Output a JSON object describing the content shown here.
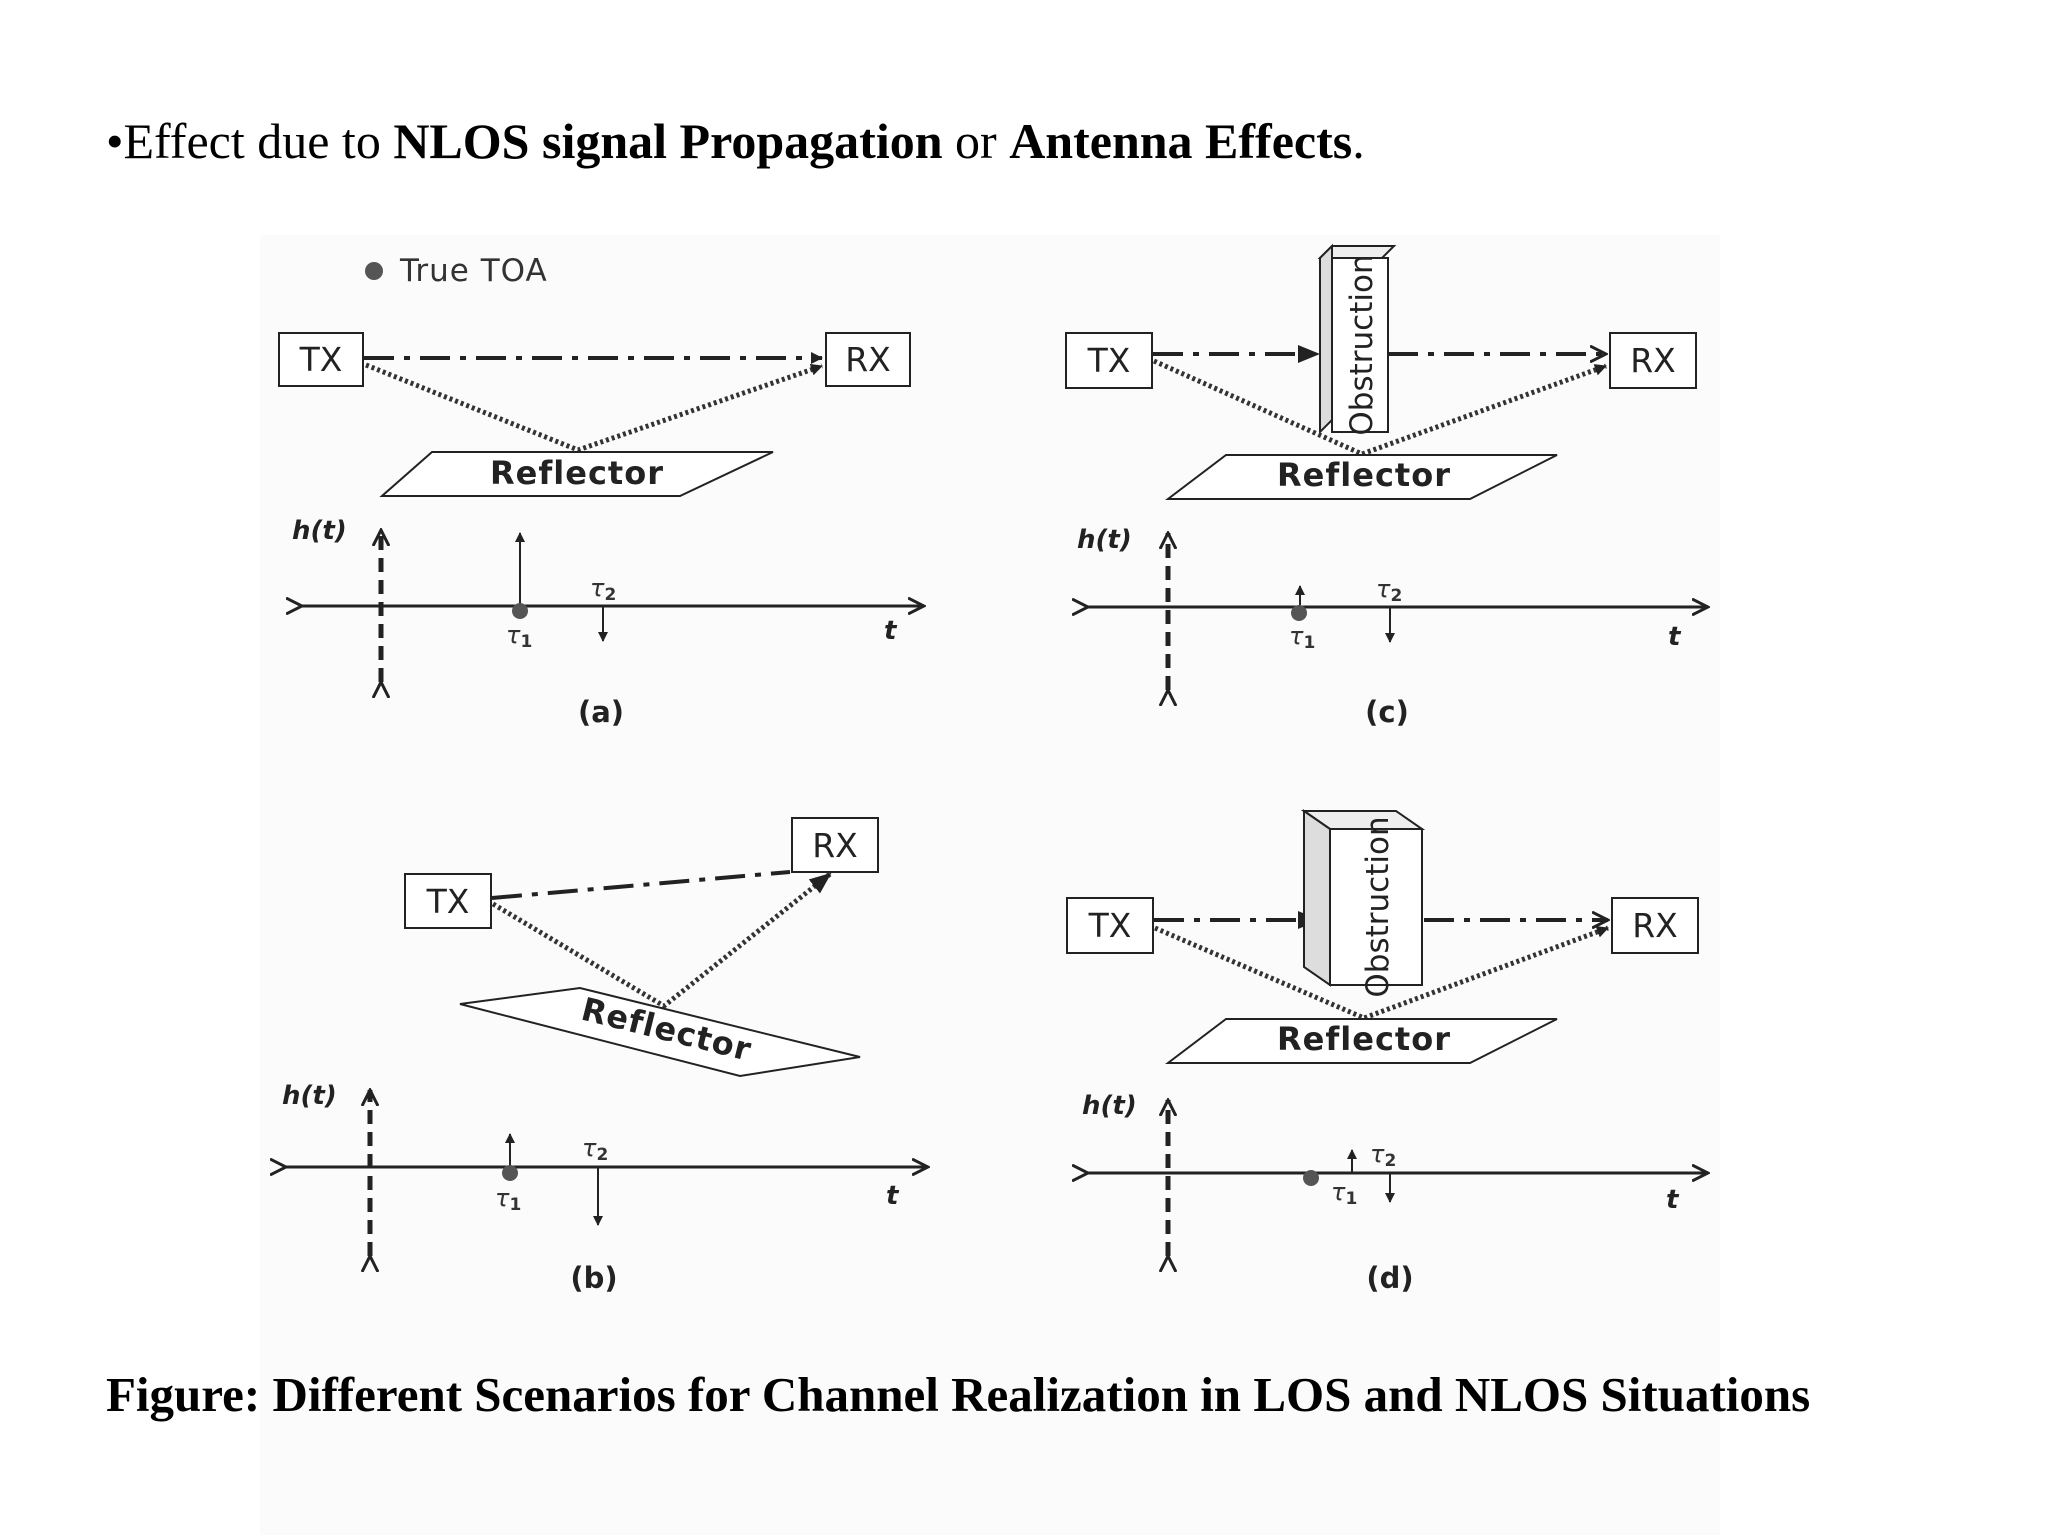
{
  "heading": {
    "bullet": "•",
    "part1": "Effect due to ",
    "bold1": "NLOS signal Propagation",
    "part2": " or ",
    "bold2": "Antenna Effects",
    "part3": "."
  },
  "legend": {
    "label": "True TOA"
  },
  "panels": [
    {
      "id": "a",
      "tx": "TX",
      "rx": "RX",
      "reflector": "Reflector",
      "axis_y": "h(t)",
      "axis_x": "t",
      "tau": "τ",
      "tau1_sub": "1",
      "tau2_sub": "2",
      "label": "(a)"
    },
    {
      "id": "b",
      "tx": "TX",
      "rx": "RX",
      "reflector": "Reflector",
      "axis_y": "h(t)",
      "axis_x": "t",
      "tau": "τ",
      "tau1_sub": "1",
      "tau2_sub": "2",
      "label": "(b)"
    },
    {
      "id": "c",
      "tx": "TX",
      "rx": "RX",
      "reflector": "Reflector",
      "obstruction": "Obstruction",
      "axis_y": "h(t)",
      "axis_x": "t",
      "tau": "τ",
      "tau1_sub": "1",
      "tau2_sub": "2",
      "label": "(c)"
    },
    {
      "id": "d",
      "tx": "TX",
      "rx": "RX",
      "reflector": "Reflector",
      "obstruction": "Obstruction",
      "axis_y": "h(t)",
      "axis_x": "t",
      "tau": "τ",
      "tau1_sub": "1",
      "tau2_sub": "2",
      "label": "(d)"
    }
  ],
  "caption": "Figure: Different Scenarios for Channel Realization in LOS and NLOS Situations",
  "colors": {
    "ink": "#222222",
    "dot": "#555555",
    "obstruction_side": "#dddddd",
    "panel_bg": "#fbfbfb"
  }
}
